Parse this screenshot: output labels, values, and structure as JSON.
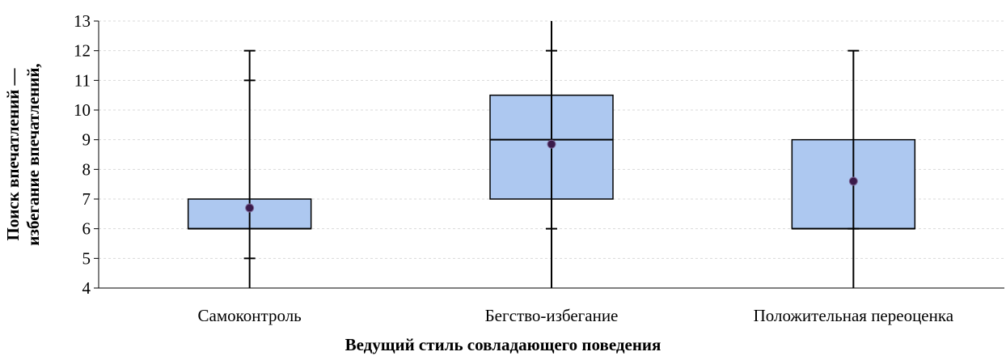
{
  "chart_data": {
    "type": "boxplot",
    "title": "",
    "xlabel": "Ведущий стиль совладающего поведения",
    "ylabel_lines": [
      "Поиск впечатлений —",
      "избегание впечатлений,"
    ],
    "ylim": [
      4,
      13
    ],
    "yticks": [
      4,
      5,
      6,
      7,
      8,
      9,
      10,
      11,
      12,
      13
    ],
    "grid": true,
    "colors": {
      "box_fill": "#adc8f0",
      "stroke": "#000000",
      "mean_marker": "#3a1a4a",
      "grid": "#d9d9d9"
    },
    "boxes": [
      {
        "category": "Самоконтроль",
        "q1": 6.0,
        "median": 6.0,
        "q3": 7.0,
        "mean": 6.7,
        "whisker_low": 4.0,
        "whisker_high": 12.0,
        "caps": [
          5.0,
          11.0,
          12.0
        ]
      },
      {
        "category": "Бегство-избегание",
        "q1": 7.0,
        "median": 9.0,
        "q3": 10.5,
        "mean": 8.85,
        "whisker_low": 4.0,
        "whisker_high": 13.0,
        "caps": [
          6.0,
          12.0
        ]
      },
      {
        "category": "Положительная переоценка",
        "q1": 6.0,
        "median": 6.0,
        "q3": 9.0,
        "mean": 7.6,
        "whisker_low": 4.0,
        "whisker_high": 12.0,
        "caps": [
          6.0,
          12.0
        ]
      }
    ]
  }
}
